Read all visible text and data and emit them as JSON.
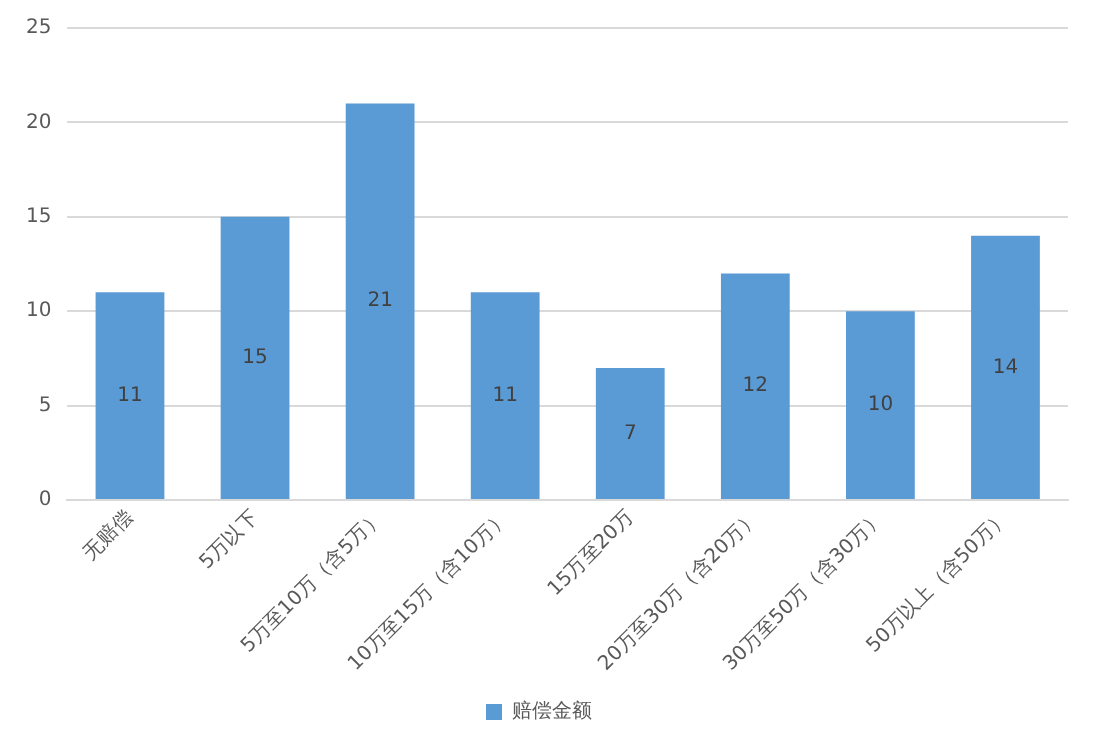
{
  "chart_data": {
    "type": "bar",
    "categories": [
      "无赔偿",
      "5万以下",
      "5万至10万（含5万）",
      "10万至15万（含10万）",
      "15万至20万",
      "20万至30万（含20万）",
      "30万至50万（含30万）",
      "50万以上（含50万）"
    ],
    "series": [
      {
        "name": "赔偿金额",
        "color": "#5b9bd5",
        "values": [
          11,
          15,
          21,
          11,
          7,
          12,
          10,
          14
        ]
      }
    ],
    "ylim": [
      0,
      25
    ],
    "yticks": [
      0,
      5,
      10,
      15,
      20,
      25
    ],
    "grid": "y",
    "legend": "bottom",
    "data_labels": true
  }
}
